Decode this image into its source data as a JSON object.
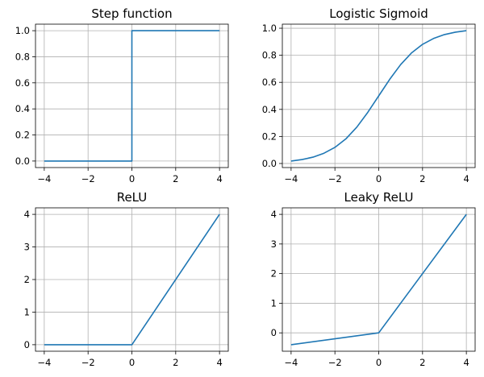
{
  "chart_data": [
    {
      "type": "line",
      "title": "Step function",
      "xlabel": "",
      "ylabel": "",
      "xlim": [
        -4.4,
        4.4
      ],
      "ylim": [
        -0.05,
        1.05
      ],
      "xticks": [
        -4,
        -2,
        0,
        2,
        4
      ],
      "xtick_labels": [
        "−4",
        "−2",
        "0",
        "2",
        "4"
      ],
      "yticks": [
        0.0,
        0.2,
        0.4,
        0.6,
        0.8,
        1.0
      ],
      "ytick_labels": [
        "0.0",
        "0.2",
        "0.4",
        "0.6",
        "0.8",
        "1.0"
      ],
      "grid": true,
      "series": [
        {
          "name": "step",
          "color": "#1f77b4",
          "x": [
            -4,
            0,
            0,
            4
          ],
          "y": [
            0,
            0,
            1,
            1
          ]
        }
      ]
    },
    {
      "type": "line",
      "title": "Logistic Sigmoid",
      "xlabel": "",
      "ylabel": "",
      "xlim": [
        -4.4,
        4.4
      ],
      "ylim": [
        -0.03,
        1.03
      ],
      "xticks": [
        -4,
        -2,
        0,
        2,
        4
      ],
      "xtick_labels": [
        "−4",
        "−2",
        "0",
        "2",
        "4"
      ],
      "yticks": [
        0.0,
        0.2,
        0.4,
        0.6,
        0.8,
        1.0
      ],
      "ytick_labels": [
        "0.0",
        "0.2",
        "0.4",
        "0.6",
        "0.8",
        "1.0"
      ],
      "grid": true,
      "series": [
        {
          "name": "sigmoid",
          "color": "#1f77b4",
          "x": [
            -4,
            -3.5,
            -3,
            -2.5,
            -2,
            -1.5,
            -1,
            -0.5,
            0,
            0.5,
            1,
            1.5,
            2,
            2.5,
            3,
            3.5,
            4
          ],
          "y": [
            0.018,
            0.029,
            0.047,
            0.076,
            0.119,
            0.182,
            0.269,
            0.378,
            0.5,
            0.622,
            0.731,
            0.818,
            0.881,
            0.924,
            0.953,
            0.971,
            0.982
          ]
        }
      ]
    },
    {
      "type": "line",
      "title": "ReLU",
      "xlabel": "",
      "ylabel": "",
      "xlim": [
        -4.4,
        4.4
      ],
      "ylim": [
        -0.2,
        4.2
      ],
      "xticks": [
        -4,
        -2,
        0,
        2,
        4
      ],
      "xtick_labels": [
        "−4",
        "−2",
        "0",
        "2",
        "4"
      ],
      "yticks": [
        0,
        1,
        2,
        3,
        4
      ],
      "ytick_labels": [
        "0",
        "1",
        "2",
        "3",
        "4"
      ],
      "grid": true,
      "series": [
        {
          "name": "relu",
          "color": "#1f77b4",
          "x": [
            -4,
            0,
            4
          ],
          "y": [
            0,
            0,
            4
          ]
        }
      ]
    },
    {
      "type": "line",
      "title": "Leaky ReLU",
      "xlabel": "",
      "ylabel": "",
      "xlim": [
        -4.4,
        4.4
      ],
      "ylim": [
        -0.62,
        4.22
      ],
      "xticks": [
        -4,
        -2,
        0,
        2,
        4
      ],
      "xtick_labels": [
        "−4",
        "−2",
        "0",
        "2",
        "4"
      ],
      "yticks": [
        0,
        1,
        2,
        3,
        4
      ],
      "ytick_labels": [
        "0",
        "1",
        "2",
        "3",
        "4"
      ],
      "grid": true,
      "series": [
        {
          "name": "leaky_relu",
          "color": "#1f77b4",
          "x": [
            -4,
            0,
            4
          ],
          "y": [
            -0.4,
            0,
            4
          ]
        }
      ]
    }
  ]
}
